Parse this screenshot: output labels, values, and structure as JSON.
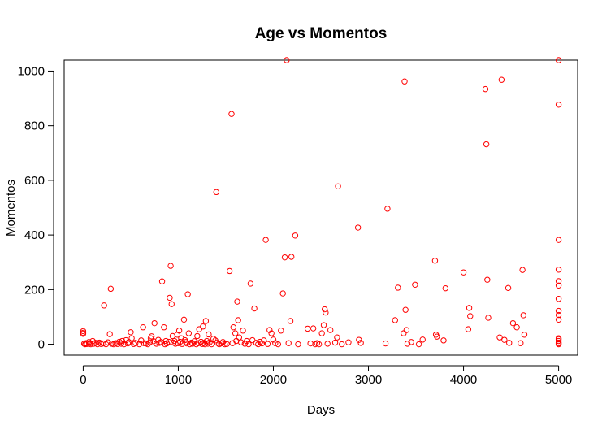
{
  "chart_data": {
    "type": "scatter",
    "title": "Age vs Momentos",
    "xlabel": "Days",
    "ylabel": "Momentos",
    "xlim": [
      -200,
      5200
    ],
    "ylim": [
      -40,
      1040
    ],
    "xticks": [
      "0",
      "1000",
      "2000",
      "3000",
      "4000",
      "5000"
    ],
    "yticks": [
      "0",
      "200",
      "400",
      "600",
      "800",
      "1000"
    ],
    "marker_color": "#ff0000",
    "points": [
      [
        0,
        48
      ],
      [
        0,
        42
      ],
      [
        0,
        38
      ],
      [
        10,
        2
      ],
      [
        20,
        0
      ],
      [
        30,
        4
      ],
      [
        40,
        1
      ],
      [
        60,
        8
      ],
      [
        70,
        3
      ],
      [
        80,
        0
      ],
      [
        100,
        12
      ],
      [
        110,
        2
      ],
      [
        130,
        5
      ],
      [
        150,
        0
      ],
      [
        170,
        6
      ],
      [
        190,
        1
      ],
      [
        210,
        3
      ],
      [
        220,
        142
      ],
      [
        240,
        0
      ],
      [
        260,
        7
      ],
      [
        280,
        37
      ],
      [
        290,
        203
      ],
      [
        300,
        2
      ],
      [
        320,
        0
      ],
      [
        340,
        4
      ],
      [
        360,
        1
      ],
      [
        380,
        9
      ],
      [
        400,
        2
      ],
      [
        410,
        12
      ],
      [
        430,
        0
      ],
      [
        450,
        15
      ],
      [
        470,
        3
      ],
      [
        480,
        8
      ],
      [
        500,
        44
      ],
      [
        510,
        22
      ],
      [
        530,
        1
      ],
      [
        550,
        5
      ],
      [
        590,
        0
      ],
      [
        610,
        14
      ],
      [
        630,
        62
      ],
      [
        640,
        4
      ],
      [
        660,
        3
      ],
      [
        680,
        0
      ],
      [
        700,
        7
      ],
      [
        710,
        22
      ],
      [
        720,
        29
      ],
      [
        740,
        11
      ],
      [
        750,
        77
      ],
      [
        770,
        2
      ],
      [
        790,
        16
      ],
      [
        800,
        5
      ],
      [
        820,
        8
      ],
      [
        830,
        230
      ],
      [
        850,
        62
      ],
      [
        860,
        0
      ],
      [
        870,
        12
      ],
      [
        880,
        3
      ],
      [
        900,
        9
      ],
      [
        910,
        170
      ],
      [
        920,
        287
      ],
      [
        930,
        147
      ],
      [
        940,
        30
      ],
      [
        950,
        6
      ],
      [
        960,
        12
      ],
      [
        970,
        2
      ],
      [
        990,
        35
      ],
      [
        1000,
        4
      ],
      [
        1010,
        50
      ],
      [
        1020,
        9
      ],
      [
        1030,
        22
      ],
      [
        1040,
        1
      ],
      [
        1060,
        90
      ],
      [
        1070,
        15
      ],
      [
        1080,
        8
      ],
      [
        1090,
        3
      ],
      [
        1100,
        183
      ],
      [
        1110,
        40
      ],
      [
        1120,
        0
      ],
      [
        1140,
        6
      ],
      [
        1150,
        2
      ],
      [
        1170,
        11
      ],
      [
        1190,
        0
      ],
      [
        1200,
        30
      ],
      [
        1210,
        4
      ],
      [
        1220,
        55
      ],
      [
        1240,
        9
      ],
      [
        1250,
        1
      ],
      [
        1260,
        65
      ],
      [
        1270,
        5
      ],
      [
        1280,
        0
      ],
      [
        1290,
        85
      ],
      [
        1300,
        12
      ],
      [
        1310,
        2
      ],
      [
        1320,
        36
      ],
      [
        1330,
        7
      ],
      [
        1350,
        0
      ],
      [
        1370,
        20
      ],
      [
        1390,
        14
      ],
      [
        1400,
        557
      ],
      [
        1410,
        5
      ],
      [
        1430,
        0
      ],
      [
        1450,
        3
      ],
      [
        1470,
        8
      ],
      [
        1490,
        0
      ],
      [
        1510,
        1
      ],
      [
        1540,
        268
      ],
      [
        1560,
        843
      ],
      [
        1570,
        4
      ],
      [
        1580,
        62
      ],
      [
        1600,
        40
      ],
      [
        1610,
        12
      ],
      [
        1620,
        156
      ],
      [
        1630,
        88
      ],
      [
        1640,
        25
      ],
      [
        1660,
        7
      ],
      [
        1680,
        50
      ],
      [
        1700,
        2
      ],
      [
        1720,
        12
      ],
      [
        1740,
        0
      ],
      [
        1760,
        222
      ],
      [
        1780,
        15
      ],
      [
        1800,
        131
      ],
      [
        1820,
        5
      ],
      [
        1840,
        0
      ],
      [
        1860,
        9
      ],
      [
        1880,
        3
      ],
      [
        1900,
        14
      ],
      [
        1920,
        382
      ],
      [
        1940,
        1
      ],
      [
        1960,
        52
      ],
      [
        1980,
        40
      ],
      [
        2000,
        17
      ],
      [
        2020,
        4
      ],
      [
        2050,
        0
      ],
      [
        2080,
        50
      ],
      [
        2100,
        186
      ],
      [
        2120,
        318
      ],
      [
        2140,
        1040
      ],
      [
        2160,
        4
      ],
      [
        2180,
        85
      ],
      [
        2190,
        320
      ],
      [
        2230,
        398
      ],
      [
        2260,
        0
      ],
      [
        2360,
        57
      ],
      [
        2390,
        3
      ],
      [
        2420,
        58
      ],
      [
        2440,
        0
      ],
      [
        2460,
        4
      ],
      [
        2480,
        0
      ],
      [
        2510,
        40
      ],
      [
        2530,
        70
      ],
      [
        2540,
        128
      ],
      [
        2550,
        116
      ],
      [
        2570,
        2
      ],
      [
        2600,
        52
      ],
      [
        2650,
        6
      ],
      [
        2670,
        25
      ],
      [
        2680,
        578
      ],
      [
        2720,
        0
      ],
      [
        2790,
        7
      ],
      [
        2890,
        427
      ],
      [
        2900,
        16
      ],
      [
        2920,
        5
      ],
      [
        3180,
        3
      ],
      [
        3200,
        496
      ],
      [
        3280,
        88
      ],
      [
        3310,
        207
      ],
      [
        3370,
        40
      ],
      [
        3380,
        962
      ],
      [
        3390,
        126
      ],
      [
        3400,
        52
      ],
      [
        3410,
        2
      ],
      [
        3450,
        8
      ],
      [
        3490,
        218
      ],
      [
        3530,
        0
      ],
      [
        3570,
        17
      ],
      [
        3700,
        306
      ],
      [
        3710,
        35
      ],
      [
        3720,
        28
      ],
      [
        3790,
        14
      ],
      [
        3810,
        205
      ],
      [
        4000,
        263
      ],
      [
        4050,
        55
      ],
      [
        4060,
        133
      ],
      [
        4070,
        103
      ],
      [
        4230,
        934
      ],
      [
        4240,
        732
      ],
      [
        4250,
        236
      ],
      [
        4260,
        97
      ],
      [
        4380,
        25
      ],
      [
        4400,
        968
      ],
      [
        4430,
        16
      ],
      [
        4470,
        206
      ],
      [
        4480,
        5
      ],
      [
        4520,
        77
      ],
      [
        4560,
        62
      ],
      [
        4600,
        4
      ],
      [
        4620,
        272
      ],
      [
        4630,
        106
      ],
      [
        4640,
        35
      ],
      [
        5000,
        1040
      ],
      [
        5000,
        877
      ],
      [
        5000,
        382
      ],
      [
        5000,
        273
      ],
      [
        5000,
        231
      ],
      [
        5000,
        215
      ],
      [
        5000,
        166
      ],
      [
        5000,
        122
      ],
      [
        5000,
        107
      ],
      [
        5000,
        90
      ],
      [
        5000,
        22
      ],
      [
        5000,
        18
      ],
      [
        5000,
        12
      ],
      [
        5000,
        6
      ],
      [
        5000,
        3
      ],
      [
        5000,
        0
      ]
    ]
  }
}
